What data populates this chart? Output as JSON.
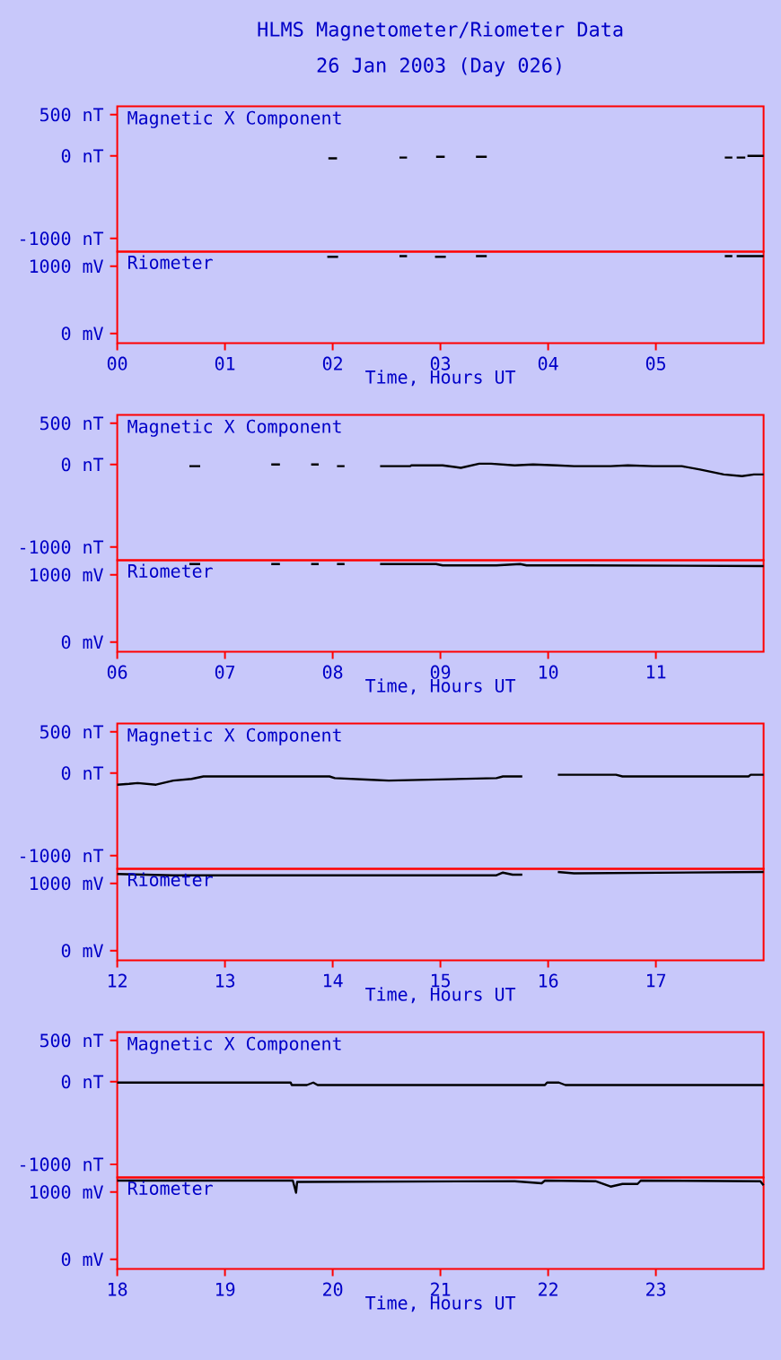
{
  "chart_data": [
    {
      "type": "line",
      "title": "HLMS Magnetometer/Riometer Data",
      "subtitle": "26 Jan 2003 (Day 026)",
      "annotations": [
        "Magnetic X Component"
      ],
      "xlim": [
        0,
        6
      ],
      "ylim": [
        -1160,
        600
      ],
      "yticks": [
        {
          "value": 500,
          "label": "500 nT"
        },
        {
          "value": 0,
          "label": "0 nT"
        },
        {
          "value": -1000,
          "label": "-1000 nT"
        }
      ],
      "tick_labels": "y",
      "series": [
        {
          "color": "#000000",
          "x": [
            1.96,
            2.04,
            2.3,
            2.62,
            2.69,
            2.8,
            2.96,
            3.04,
            3.2,
            3.33,
            3.43,
            4.5,
            5.64,
            5.71,
            5.73,
            5.75,
            5.83,
            5.84,
            5.85,
            6.0
          ],
          "values": [
            -30,
            -30,
            null,
            -20,
            -20,
            null,
            -10,
            -10,
            null,
            -10,
            -10,
            null,
            -20,
            -20,
            null,
            -20,
            -20,
            null,
            0,
            0
          ]
        }
      ]
    },
    {
      "type": "line",
      "annotations": [
        "Riometer"
      ],
      "xlabel": "Time, Hours UT",
      "xlim": [
        0,
        6
      ],
      "xticks": [
        {
          "value": 0,
          "label": "00"
        },
        {
          "value": 1,
          "label": "01"
        },
        {
          "value": 2,
          "label": "02"
        },
        {
          "value": 3,
          "label": "03"
        },
        {
          "value": 4,
          "label": "04"
        },
        {
          "value": 5,
          "label": "05"
        }
      ],
      "ylim": [
        -145,
        1215
      ],
      "yticks": [
        {
          "value": 1000,
          "label": "1000 mV"
        },
        {
          "value": 0,
          "label": "0 mV"
        }
      ],
      "series": [
        {
          "color": "#000000",
          "x": [
            1.95,
            2.05,
            2.3,
            2.62,
            2.69,
            2.8,
            2.95,
            3.05,
            3.2,
            3.33,
            3.43,
            4.5,
            5.64,
            5.71,
            5.73,
            5.75,
            6.0
          ],
          "values": [
            1140,
            1140,
            null,
            1150,
            1150,
            null,
            1140,
            1140,
            null,
            1150,
            1150,
            null,
            1150,
            1150,
            null,
            1150,
            1150
          ]
        }
      ]
    },
    {
      "type": "line",
      "annotations": [
        "Magnetic X Component"
      ],
      "xlim": [
        6,
        12
      ],
      "ylim": [
        -1160,
        600
      ],
      "yticks": [
        {
          "value": 500,
          "label": "500 nT"
        },
        {
          "value": 0,
          "label": "0 nT"
        },
        {
          "value": -1000,
          "label": "-1000 nT"
        }
      ],
      "tick_labels": "y",
      "series": [
        {
          "color": "#000000",
          "x": [
            6.67,
            6.77,
            7.0,
            7.43,
            7.51,
            7.7,
            7.8,
            7.87,
            7.95,
            8.04,
            8.11,
            8.3,
            8.44,
            8.72,
            8.73,
            9.02,
            9.19,
            9.36,
            9.47,
            9.69,
            9.86,
            10.08,
            10.24,
            10.58,
            10.74,
            10.97,
            11.24,
            11.41,
            11.63,
            11.8,
            11.91,
            12.0
          ],
          "values": [
            -20,
            -20,
            null,
            0,
            0,
            null,
            0,
            0,
            null,
            -20,
            -20,
            null,
            -20,
            -20,
            -10,
            -10,
            -40,
            10,
            10,
            -10,
            0,
            -10,
            -20,
            -20,
            -10,
            -20,
            -20,
            -60,
            -120,
            -140,
            -120,
            -120
          ]
        }
      ]
    },
    {
      "type": "line",
      "annotations": [
        "Riometer"
      ],
      "xlabel": "Time, Hours UT",
      "xlim": [
        6,
        12
      ],
      "xticks": [
        {
          "value": 6,
          "label": "06"
        },
        {
          "value": 7,
          "label": "07"
        },
        {
          "value": 8,
          "label": "08"
        },
        {
          "value": 9,
          "label": "09"
        },
        10,
        11
      ],
      "ylim": [
        -145,
        1215
      ],
      "yticks": [
        {
          "value": 1000,
          "label": "1000 mV"
        },
        {
          "value": 0,
          "label": "0 mV"
        }
      ],
      "series": [
        {
          "color": "#000000",
          "x": [
            6.67,
            6.77,
            7.0,
            7.43,
            7.51,
            7.7,
            7.8,
            7.87,
            7.95,
            8.04,
            8.11,
            8.3,
            8.44,
            8.96,
            9.02,
            9.52,
            9.74,
            9.8,
            10.36,
            12.0
          ],
          "values": [
            1160,
            1160,
            null,
            1160,
            1160,
            null,
            1160,
            1160,
            null,
            1160,
            1160,
            null,
            1160,
            1160,
            1140,
            1140,
            1160,
            1140,
            1140,
            1130
          ]
        }
      ]
    },
    {
      "type": "line",
      "annotations": [
        "Magnetic X Component"
      ],
      "xlim": [
        12,
        18
      ],
      "ylim": [
        -1160,
        600
      ],
      "yticks": [
        {
          "value": 500,
          "label": "500 nT"
        },
        {
          "value": 0,
          "label": "0 nT"
        },
        {
          "value": -1000,
          "label": "-1000 nT"
        }
      ],
      "tick_labels": "y",
      "series": [
        {
          "color": "#000000",
          "x": [
            12.0,
            12.11,
            12.19,
            12.36,
            12.52,
            12.69,
            12.8,
            13.97,
            14.02,
            14.36,
            14.52,
            15.52,
            15.58,
            15.76,
            15.9,
            16.09,
            16.63,
            16.69,
            17.36,
            17.47,
            17.86,
            17.88,
            18.0
          ],
          "values": [
            -140,
            -130,
            -120,
            -140,
            -90,
            -70,
            -40,
            -40,
            -60,
            -80,
            -90,
            -60,
            -40,
            -40,
            null,
            -20,
            -20,
            -40,
            -40,
            -40,
            -40,
            -20,
            -20
          ]
        }
      ]
    },
    {
      "type": "line",
      "annotations": [
        "Riometer"
      ],
      "xlabel": "Time, Hours UT",
      "xlim": [
        12,
        18
      ],
      "xticks": [
        12,
        13,
        14,
        15,
        16,
        17
      ],
      "ylim": [
        -145,
        1215
      ],
      "yticks": [
        {
          "value": 1000,
          "label": "1000 mV"
        },
        {
          "value": 0,
          "label": "0 mV"
        }
      ],
      "series": [
        {
          "color": "#000000",
          "x": [
            12.0,
            12.52,
            15.52,
            15.58,
            15.67,
            15.76,
            15.9,
            16.09,
            16.24,
            18.0
          ],
          "values": [
            1140,
            1120,
            1120,
            1160,
            1130,
            1130,
            null,
            1170,
            1150,
            1170
          ]
        }
      ]
    },
    {
      "type": "line",
      "annotations": [
        "Magnetic X Component"
      ],
      "xlim": [
        18,
        24
      ],
      "ylim": [
        -1160,
        600
      ],
      "yticks": [
        {
          "value": 500,
          "label": "500 nT"
        },
        {
          "value": 0,
          "label": "0 nT"
        },
        {
          "value": -1000,
          "label": "-1000 nT"
        }
      ],
      "tick_labels": "y",
      "series": [
        {
          "color": "#000000",
          "x": [
            18.0,
            19.61,
            19.62,
            19.76,
            19.82,
            19.86,
            21.97,
            21.99,
            22.1,
            22.16,
            24.0
          ],
          "values": [
            -10,
            -10,
            -40,
            -40,
            -10,
            -40,
            -40,
            -10,
            -10,
            -40,
            -40
          ]
        }
      ]
    },
    {
      "type": "line",
      "annotations": [
        "Riometer"
      ],
      "xlabel": "Time, Hours UT",
      "xlim": [
        18,
        24
      ],
      "xticks": [
        18,
        19,
        20,
        21,
        22,
        23
      ],
      "ylim": [
        -145,
        1215
      ],
      "yticks": [
        {
          "value": 1000,
          "label": "1000 mV"
        },
        {
          "value": 0,
          "label": "0 mV"
        }
      ],
      "series": [
        {
          "color": "#000000",
          "x": [
            18.0,
            19.63,
            19.66,
            19.67,
            21.69,
            21.94,
            21.97,
            22.44,
            22.58,
            22.69,
            22.83,
            22.86,
            23.97,
            24.0
          ],
          "values": [
            1170,
            1170,
            990,
            1150,
            1160,
            1130,
            1170,
            1160,
            1080,
            1120,
            1120,
            1170,
            1160,
            1100
          ]
        }
      ]
    }
  ]
}
